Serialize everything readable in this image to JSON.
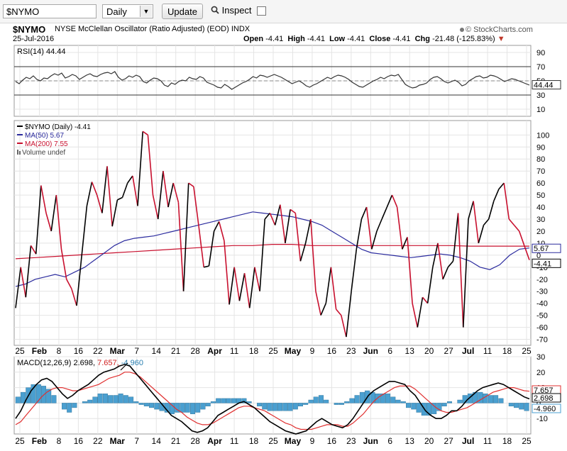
{
  "toolbar": {
    "symbol_value": "$NYMO",
    "period_value": "Daily",
    "update_label": "Update",
    "inspect_label": "Inspect"
  },
  "header": {
    "symbol": "$NYMO",
    "name": "NYSE McClellan Oscillator (Ratio Adjusted) (EOD)",
    "exchange": "INDX",
    "date": "25-Jul-2016",
    "brand": "© StockCharts.com",
    "open_label": "Open",
    "open": "-4.41",
    "high_label": "High",
    "high": "-4.41",
    "low_label": "Low",
    "low": "-4.41",
    "close_label": "Close",
    "close": "-4.41",
    "chg_label": "Chg",
    "chg": "-21.48 (-125.83%)",
    "chg_marker": "▼"
  },
  "colors": {
    "price_up": "#000000",
    "price_down": "#c8102e",
    "ma50": "#2b2b9e",
    "ma200": "#c8102e",
    "rsi": "#333333",
    "macd_line": "#000000",
    "macd_signal": "#e03030",
    "histogram": "#4a9fd0",
    "grid": "#e4e4e4"
  },
  "chart_data": [
    {
      "type": "line",
      "panel": "rsi",
      "legend": "RSI(14) 44.44",
      "last_value_label": "44.44",
      "ylim": [
        0,
        100
      ],
      "reference_lines": [
        30,
        50,
        70
      ],
      "y_ticks": [
        "90",
        "70",
        "50",
        "30",
        "10"
      ],
      "values": [
        49,
        46,
        51,
        55,
        53,
        57,
        52,
        50,
        54,
        53,
        57,
        60,
        58,
        61,
        54,
        56,
        59,
        57,
        52,
        55,
        58,
        60,
        57,
        56,
        59,
        61,
        62,
        60,
        63,
        55,
        51,
        53,
        57,
        55,
        58,
        56,
        49,
        47,
        51,
        54,
        53,
        50,
        44,
        42,
        47,
        45,
        49,
        51,
        50,
        55,
        53,
        52,
        56,
        54,
        48,
        46,
        44,
        41,
        40,
        45,
        42,
        38,
        41,
        44,
        47,
        49,
        52,
        56,
        54,
        58,
        57,
        55,
        57,
        59,
        57,
        55,
        52,
        49,
        46,
        48,
        50,
        47,
        43,
        41,
        44,
        46,
        49,
        52,
        55,
        53,
        56,
        58,
        57,
        55,
        52,
        48,
        45,
        42,
        41,
        44,
        47,
        50,
        52,
        55,
        53,
        56,
        58,
        57,
        59,
        52,
        45,
        42,
        40,
        41,
        44,
        45,
        47,
        52,
        55,
        56,
        53,
        49,
        47,
        49,
        51,
        48,
        43,
        45,
        50,
        53,
        56,
        57,
        54,
        55,
        58,
        57,
        55,
        52,
        49,
        51,
        53,
        52,
        50,
        48,
        46,
        44
      ]
    },
    {
      "type": "line",
      "panel": "price",
      "series": [
        {
          "name": "$NYMO (Daily)",
          "last": "-4.41",
          "role": "price"
        },
        {
          "name": "MA(50)",
          "last": "5.67",
          "role": "ma50"
        },
        {
          "name": "MA(200)",
          "last": "7.55",
          "role": "ma200"
        },
        {
          "name": "Volume undef",
          "role": "volume"
        }
      ],
      "ylim": [
        -75,
        112
      ],
      "y_ticks": [
        "100",
        "90",
        "80",
        "70",
        "60",
        "50",
        "40",
        "30",
        "20",
        "10",
        "0",
        "-10",
        "-20",
        "-30",
        "-40",
        "-50",
        "-60",
        "-70"
      ],
      "price_labels": [
        "5.67",
        "-4.41"
      ],
      "values": [
        -44,
        -10,
        -35,
        8,
        1,
        58,
        35,
        20,
        50,
        5,
        -20,
        -28,
        -42,
        0,
        41,
        61,
        50,
        35,
        74,
        24,
        46,
        48,
        60,
        66,
        41,
        103,
        100,
        50,
        30,
        70,
        40,
        60,
        44,
        -30,
        60,
        57,
        24,
        -10,
        -9,
        20,
        28,
        12,
        -41,
        -10,
        -38,
        -15,
        -44,
        -10,
        -30,
        30,
        35,
        25,
        42,
        10,
        38,
        35,
        -5,
        10,
        30,
        -30,
        -50,
        -40,
        -10,
        -45,
        -50,
        -68,
        -30,
        5,
        30,
        40,
        5,
        20,
        30,
        40,
        50,
        40,
        5,
        15,
        -40,
        -60,
        -35,
        -40,
        -10,
        10,
        -20,
        -10,
        -5,
        35,
        -60,
        30,
        45,
        10,
        25,
        30,
        45,
        55,
        60,
        30,
        25,
        20,
        8,
        -4
      ],
      "ma50_values": [
        -26,
        -24,
        -20,
        -18,
        -16,
        -18,
        -14,
        -10,
        -4,
        2,
        8,
        12,
        14,
        15,
        16,
        18,
        20,
        22,
        24,
        26,
        28,
        30,
        32,
        34,
        36,
        35,
        34,
        33,
        32,
        30,
        28,
        25,
        20,
        15,
        10,
        5,
        2,
        1,
        0,
        -1,
        -2,
        -1,
        0,
        1,
        0,
        -2,
        -5,
        -10,
        -12,
        -8,
        0,
        5,
        6
      ],
      "ma200_values": [
        -3,
        -2,
        -1,
        0,
        1,
        2,
        3,
        4,
        5,
        6,
        7,
        8,
        8,
        9,
        9,
        8,
        8,
        8,
        8,
        8,
        8,
        8,
        8,
        7.5,
        7.5,
        7.5,
        7.55
      ]
    },
    {
      "type": "line",
      "panel": "macd",
      "legend_label": "MACD(12,26,9)",
      "legend_macd": "2.698",
      "legend_signal": "7.657",
      "legend_hist": "-4.960",
      "ylim": [
        -20,
        30
      ],
      "y_ticks": [
        "30",
        "20",
        "10",
        "0",
        "-10"
      ],
      "value_labels": [
        "7.657",
        "2.698",
        "-4.960"
      ],
      "macd_values": [
        -10,
        -5,
        2,
        8,
        12,
        15,
        16,
        14,
        10,
        6,
        3,
        5,
        8,
        10,
        12,
        15,
        18,
        20,
        21,
        22,
        24,
        25,
        24,
        20,
        16,
        12,
        8,
        4,
        0,
        -4,
        -8,
        -10,
        -12,
        -15,
        -18,
        -19,
        -18,
        -16,
        -12,
        -8,
        -6,
        -4,
        -2,
        0,
        1,
        -1,
        -3,
        -6,
        -9,
        -12,
        -14,
        -16,
        -18,
        -19,
        -20,
        -19,
        -18,
        -15,
        -12,
        -10,
        -12,
        -14,
        -15,
        -16,
        -14,
        -10,
        -5,
        0,
        5,
        8,
        10,
        12,
        14,
        14,
        13,
        12,
        8,
        5,
        0,
        -5,
        -8,
        -10,
        -10,
        -8,
        -5,
        -5,
        -2,
        2,
        5,
        8,
        10,
        11,
        12,
        13,
        12,
        10,
        8,
        6,
        4,
        2.698
      ],
      "signal_values": [
        -14,
        -12,
        -8,
        -4,
        0,
        4,
        7,
        9,
        10,
        10,
        9,
        8,
        8,
        9,
        10,
        11,
        12,
        14,
        16,
        17,
        18,
        20,
        20,
        19,
        17,
        14,
        11,
        8,
        5,
        2,
        -1,
        -4,
        -6,
        -9,
        -11,
        -13,
        -14,
        -14,
        -13,
        -11,
        -9,
        -7,
        -5,
        -3,
        -2,
        -2,
        -3,
        -4,
        -5,
        -7,
        -9,
        -11,
        -13,
        -14,
        -16,
        -17,
        -17,
        -17,
        -16,
        -15,
        -14,
        -14,
        -14,
        -15,
        -15,
        -13,
        -10,
        -7,
        -3,
        1,
        4,
        6,
        8,
        10,
        11,
        11,
        11,
        9,
        6,
        3,
        0,
        -3,
        -5,
        -6,
        -6,
        -5,
        -4,
        -3,
        -1,
        1,
        3,
        5,
        7,
        8,
        9,
        10,
        10,
        9,
        8,
        7.657
      ],
      "hist_values": [
        4,
        7,
        10,
        12,
        12,
        11,
        9,
        5,
        0,
        -4,
        -6,
        -3,
        0,
        1,
        2,
        4,
        6,
        6,
        5,
        5,
        6,
        5,
        4,
        1,
        -1,
        -2,
        -3,
        -4,
        -5,
        -6,
        -7,
        -6,
        -6,
        -6,
        -7,
        -6,
        -4,
        -2,
        1,
        3,
        3,
        3,
        3,
        3,
        3,
        1,
        0,
        -2,
        -4,
        -5,
        -5,
        -5,
        -5,
        -5,
        -4,
        -2,
        -1,
        2,
        4,
        5,
        2,
        0,
        -1,
        -1,
        1,
        3,
        5,
        7,
        8,
        7,
        6,
        6,
        6,
        4,
        2,
        1,
        -3,
        -4,
        -6,
        -8,
        -8,
        -7,
        -5,
        -2,
        1,
        0,
        2,
        5,
        6,
        7,
        7,
        6,
        5,
        5,
        3,
        0,
        -2,
        -3,
        -4,
        -4.96
      ]
    },
    {
      "type": "line",
      "panel": "x-axis",
      "x_ticks": [
        "25",
        "Feb",
        "8",
        "16",
        "22",
        "Mar",
        "7",
        "14",
        "21",
        "28",
        "Apr",
        "11",
        "18",
        "25",
        "May",
        "9",
        "16",
        "23",
        "Jun",
        "6",
        "13",
        "20",
        "27",
        "Jul",
        "11",
        "18",
        "25"
      ],
      "bold_ticks": [
        "Feb",
        "Mar",
        "Apr",
        "May",
        "Jun",
        "Jul"
      ]
    }
  ]
}
